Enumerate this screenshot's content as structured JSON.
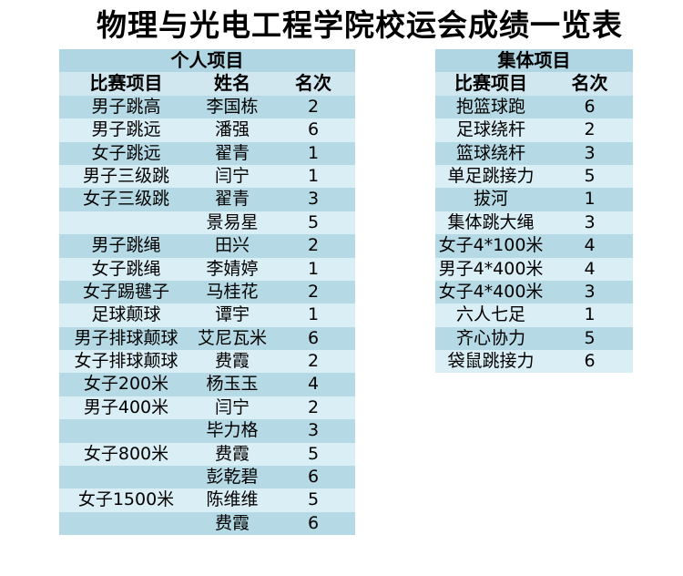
{
  "title": "物理与光电工程学院校运会成绩一览表",
  "individual_table": {
    "title": "个人项目",
    "columns": [
      "比赛项目",
      "姓名",
      "名次"
    ],
    "rows": [
      [
        "男子跳高",
        "李国栋",
        2
      ],
      [
        "男子跳远",
        "潘强",
        6
      ],
      [
        "女子跳远",
        "翟青",
        1
      ],
      [
        "男子三级跳",
        "闫宁",
        1
      ],
      [
        "女子三级跳",
        "翟青",
        3
      ],
      [
        "",
        "景易星",
        5
      ],
      [
        "男子跳绳",
        "田兴",
        2
      ],
      [
        "女子跳绳",
        "李婧婷",
        1
      ],
      [
        "女子踢毽子",
        "马桂花",
        2
      ],
      [
        "足球颠球",
        "谭宇",
        1
      ],
      [
        "男子排球颠球",
        "艾尼瓦米",
        6
      ],
      [
        "女子排球颠球",
        "费霞",
        2
      ],
      [
        "女子200米",
        "杨玉玉",
        4
      ],
      [
        "男子400米",
        "闫宁",
        2
      ],
      [
        "",
        "毕力格",
        3
      ],
      [
        "女子800米",
        "费霞",
        5
      ],
      [
        "",
        "彭乾碧",
        6
      ],
      [
        "女子1500米",
        "陈维维",
        5
      ],
      [
        "",
        "费霞",
        6
      ]
    ]
  },
  "team_table": {
    "title": "集体项目",
    "columns": [
      "比赛项目",
      "名次"
    ],
    "rows": [
      [
        "抱篮球跑",
        6
      ],
      [
        "足球绕杆",
        2
      ],
      [
        "篮球绕杆",
        3
      ],
      [
        "单足跳接力",
        5
      ],
      [
        "拔河",
        1
      ],
      [
        "集体跳大绳",
        3
      ],
      [
        "女子4*100米",
        4
      ],
      [
        "男子4*400米",
        4
      ],
      [
        "女子4*400米",
        3
      ],
      [
        "六人七足",
        1
      ],
      [
        "齐心协力",
        5
      ],
      [
        "袋鼠跳接力",
        6
      ]
    ]
  },
  "colors": {
    "background": "#ffffff",
    "band_dark": "#b5dae5",
    "band_light": "#daeef5",
    "section_header_bg": "#b0d6e3",
    "column_header_bg": "#d0e7ef",
    "text": "#000000"
  }
}
